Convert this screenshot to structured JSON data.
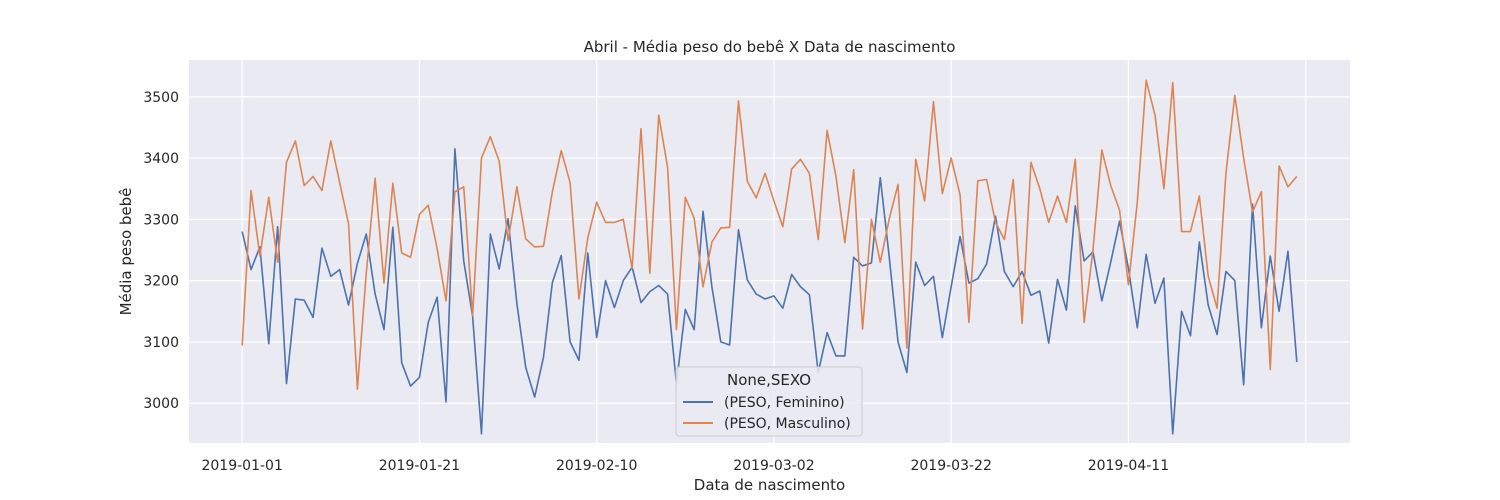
{
  "chart_data": {
    "type": "line",
    "title": "Abril - Média peso do bebê X Data de nascimento",
    "xlabel": "Data de nascimento",
    "ylabel": "Média peso bebê",
    "x_start": "2019-01-01",
    "x_end": "2019-04-30",
    "xlim": [
      "2018-12-26",
      "2019-05-06"
    ],
    "ylim": [
      2935,
      3560
    ],
    "xticks": [
      "2019-01-01",
      "2019-01-21",
      "2019-02-10",
      "2019-03-02",
      "2019-03-22",
      "2019-04-11"
    ],
    "yticks": [
      3000,
      3100,
      3200,
      3300,
      3400,
      3500
    ],
    "grid": true,
    "legend": {
      "title": "None,SEXO",
      "placement": "bottom-center"
    },
    "colors": {
      "feminino": "#4c72b0",
      "masculino": "#dd8452",
      "background": "#eaeaf2"
    },
    "series": [
      {
        "name": "(PESO, Feminino)",
        "values": [
          3280,
          3218,
          3255,
          3097,
          3288,
          3032,
          3170,
          3168,
          3140,
          3253,
          3207,
          3218,
          3160,
          3228,
          3276,
          3178,
          3120,
          3287,
          3066,
          3028,
          3042,
          3132,
          3173,
          3002,
          3415,
          3232,
          3142,
          2950,
          3276,
          3219,
          3301,
          3162,
          3058,
          3010,
          3075,
          3197,
          3241,
          3100,
          3070,
          3245,
          3107,
          3200,
          3156,
          3200,
          3222,
          3164,
          3182,
          3192,
          3178,
          3032,
          3153,
          3120,
          3313,
          3190,
          3100,
          3095,
          3283,
          3201,
          3178,
          3170,
          3175,
          3155,
          3210,
          3190,
          3177,
          3050,
          3115,
          3077,
          3077,
          3238,
          3224,
          3229,
          3368,
          3240,
          3100,
          3050,
          3230,
          3192,
          3207,
          3107,
          3190,
          3272,
          3196,
          3203,
          3227,
          3305,
          3215,
          3190,
          3215,
          3176,
          3183,
          3098,
          3202,
          3152,
          3322,
          3232,
          3247,
          3167,
          3230,
          3297,
          3220,
          3123,
          3243,
          3163,
          3204,
          2950,
          3150,
          3110,
          3263,
          3160,
          3112,
          3215,
          3200,
          3030,
          3325,
          3123,
          3240,
          3150,
          3248,
          3067
        ]
      },
      {
        "name": "(PESO, Masculino)",
        "values": [
          3094,
          3347,
          3240,
          3336,
          3230,
          3393,
          3428,
          3355,
          3370,
          3347,
          3428,
          3360,
          3293,
          3023,
          3212,
          3367,
          3196,
          3359,
          3245,
          3238,
          3308,
          3323,
          3252,
          3167,
          3345,
          3353,
          3143,
          3400,
          3435,
          3395,
          3265,
          3353,
          3268,
          3255,
          3256,
          3345,
          3412,
          3360,
          3170,
          3270,
          3328,
          3295,
          3295,
          3300,
          3220,
          3448,
          3212,
          3470,
          3385,
          3120,
          3336,
          3302,
          3190,
          3263,
          3286,
          3287,
          3493,
          3362,
          3335,
          3375,
          3330,
          3288,
          3382,
          3398,
          3375,
          3267,
          3445,
          3370,
          3262,
          3381,
          3121,
          3300,
          3230,
          3300,
          3357,
          3090,
          3398,
          3330,
          3492,
          3342,
          3400,
          3340,
          3132,
          3363,
          3365,
          3295,
          3267,
          3365,
          3130,
          3393,
          3350,
          3295,
          3338,
          3295,
          3398,
          3132,
          3250,
          3413,
          3355,
          3315,
          3193,
          3328,
          3527,
          3470,
          3350,
          3523,
          3280,
          3280,
          3338,
          3207,
          3155,
          3375,
          3502,
          3400,
          3312,
          3345,
          3055,
          3387,
          3353,
          3370
        ]
      }
    ]
  }
}
